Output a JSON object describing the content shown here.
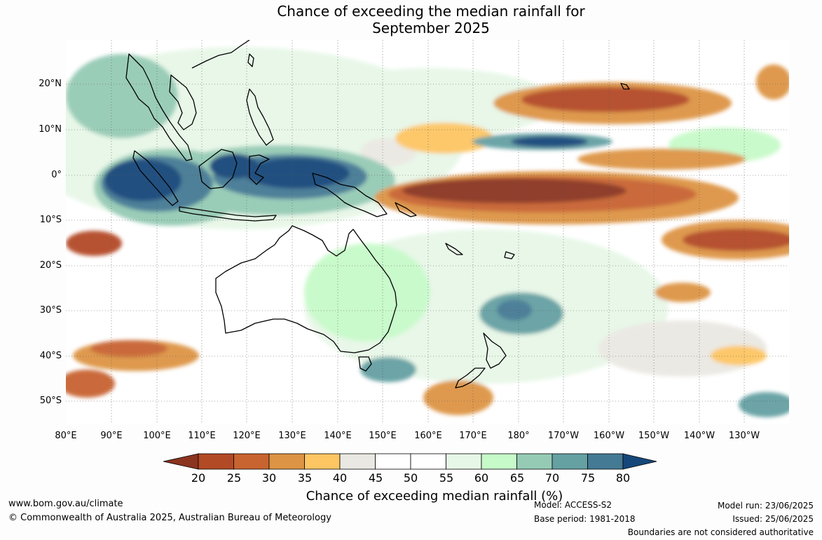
{
  "title": {
    "line1": "Chance of exceeding the median rainfall for",
    "line2": "September 2025"
  },
  "axes": {
    "lat_labels": [
      "20°N",
      "10°N",
      "0°",
      "10°S",
      "20°S",
      "30°S",
      "40°S",
      "50°S"
    ],
    "lon_labels": [
      "80°E",
      "90°E",
      "100°E",
      "110°E",
      "120°E",
      "130°E",
      "140°E",
      "150°E",
      "160°E",
      "170°E",
      "180°",
      "170°W",
      "160°W",
      "150°W",
      "140°W",
      "130°W"
    ]
  },
  "colorbar": {
    "ticks": [
      "20",
      "25",
      "30",
      "35",
      "40",
      "45",
      "50",
      "55",
      "60",
      "65",
      "70",
      "75",
      "80"
    ],
    "colors": [
      "#b34a26",
      "#c86430",
      "#dd9444",
      "#fdc663",
      "#eae8e2",
      "#ffffff",
      "#ffffff",
      "#e7f7e7",
      "#c7fac9",
      "#95cbb5",
      "#65a0a3",
      "#447a94"
    ],
    "under_color": "#8b3420",
    "over_color": "#16477a",
    "label": "Chance of exceeding median rainfall (%)"
  },
  "footer": {
    "url": "www.bom.gov.au/climate",
    "copyright": "© Commonwealth of Australia 2025, Australian Bureau of Meteorology",
    "model": "Model: ACCESS-S2",
    "base_period": "Base period: 1981-2018",
    "model_run": "Model run: 23/06/2025",
    "issued": "Issued: 25/06/2025",
    "disclaimer": "Boundaries are not considered authoritative"
  }
}
